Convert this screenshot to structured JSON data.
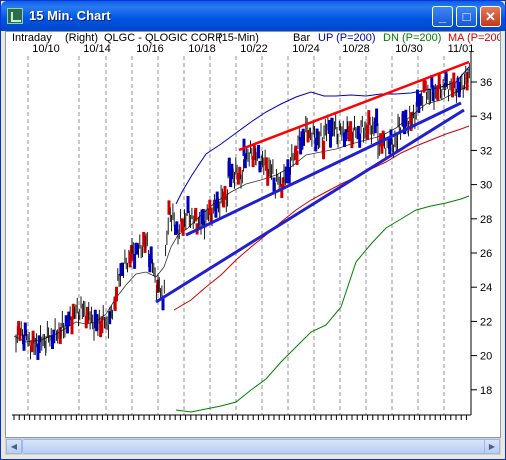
{
  "window": {
    "title": "15 Min. Chart",
    "minimize": "_",
    "maximize": "□",
    "close": "✕"
  },
  "header": {
    "intraday": "Intraday",
    "right": "(Right)",
    "symbol": "QLGC - QLOGIC CORP",
    "interval": "(15-Min)",
    "bar": "Bar",
    "up": "UP (P=200)",
    "dn": "DN (P=200)",
    "ma": "MA (P=200"
  },
  "colors": {
    "up": "#0000c0",
    "dn": "#008000",
    "ma": "#d00000",
    "trend_red": "#ff0000",
    "trend_blue": "#2020d0"
  },
  "date_labels": [
    "10/10",
    "10/14",
    "10/16",
    "10/18",
    "10/22",
    "10/24",
    "10/28",
    "10/30",
    "11/01"
  ],
  "price_labels": [
    "36",
    "34",
    "32",
    "30",
    "28",
    "26",
    "24",
    "22",
    "20",
    "18"
  ],
  "scrollbar": {
    "left_arrow": "◀",
    "right_arrow": "▶"
  },
  "chart_data": {
    "type": "bar",
    "symbol": "QLGC",
    "ylim": [
      16.5,
      37.5
    ],
    "x_ticks": [
      "10/10",
      "10/14",
      "10/16",
      "10/18",
      "10/22",
      "10/24",
      "10/28",
      "10/30",
      "11/01"
    ],
    "y_ticks": [
      18,
      20,
      22,
      24,
      26,
      28,
      30,
      32,
      34,
      36
    ],
    "series": [
      {
        "name": "Bar",
        "close_approx": [
          21.3,
          20.5,
          21.0,
          21.5,
          22.3,
          22.8,
          21.6,
          22.0,
          25.0,
          26.0,
          26.6,
          24.0,
          23.4,
          28.5,
          27.3,
          28.3,
          27.7,
          28.5,
          29.4,
          30.6,
          31.8,
          30.5,
          30.2,
          32.3,
          33.2,
          32.4,
          33.2,
          33.0,
          33.4,
          32.4,
          33.6,
          35.5,
          35.3,
          35.9,
          35.6,
          36.2,
          36.8
        ]
      },
      {
        "name": "UP (P=200)"
      },
      {
        "name": "DN (P=200)"
      },
      {
        "name": "MA (P=200"
      }
    ]
  }
}
